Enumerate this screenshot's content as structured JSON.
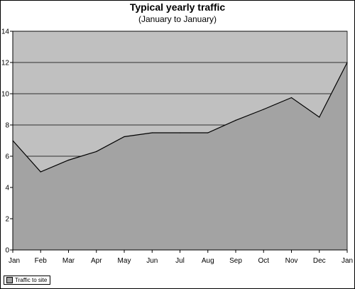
{
  "chart_data": {
    "type": "area",
    "title": "Typical yearly traffic",
    "subtitle": "(January to January)",
    "xlabel": "",
    "ylabel": "",
    "categories": [
      "Jan",
      "Feb",
      "Mar",
      "Apr",
      "May",
      "Jun",
      "Jul",
      "Aug",
      "Sep",
      "Oct",
      "Nov",
      "Dec",
      "Jan"
    ],
    "series": [
      {
        "name": "Traffic to site",
        "values": [
          7,
          5,
          5.75,
          6.3,
          7.25,
          7.5,
          7.5,
          7.5,
          8.3,
          9,
          9.75,
          8.5,
          12
        ]
      }
    ],
    "ylim": [
      0,
      14
    ],
    "yticks": [
      0,
      2,
      4,
      6,
      8,
      10,
      12,
      14
    ],
    "grid": true,
    "legend_position": "bottom-left",
    "colors": {
      "plot_background": "#c0c0c0",
      "area_fill": "#a3a3a3",
      "line": "#000000",
      "legend_swatch": "#a3a3a3"
    }
  }
}
